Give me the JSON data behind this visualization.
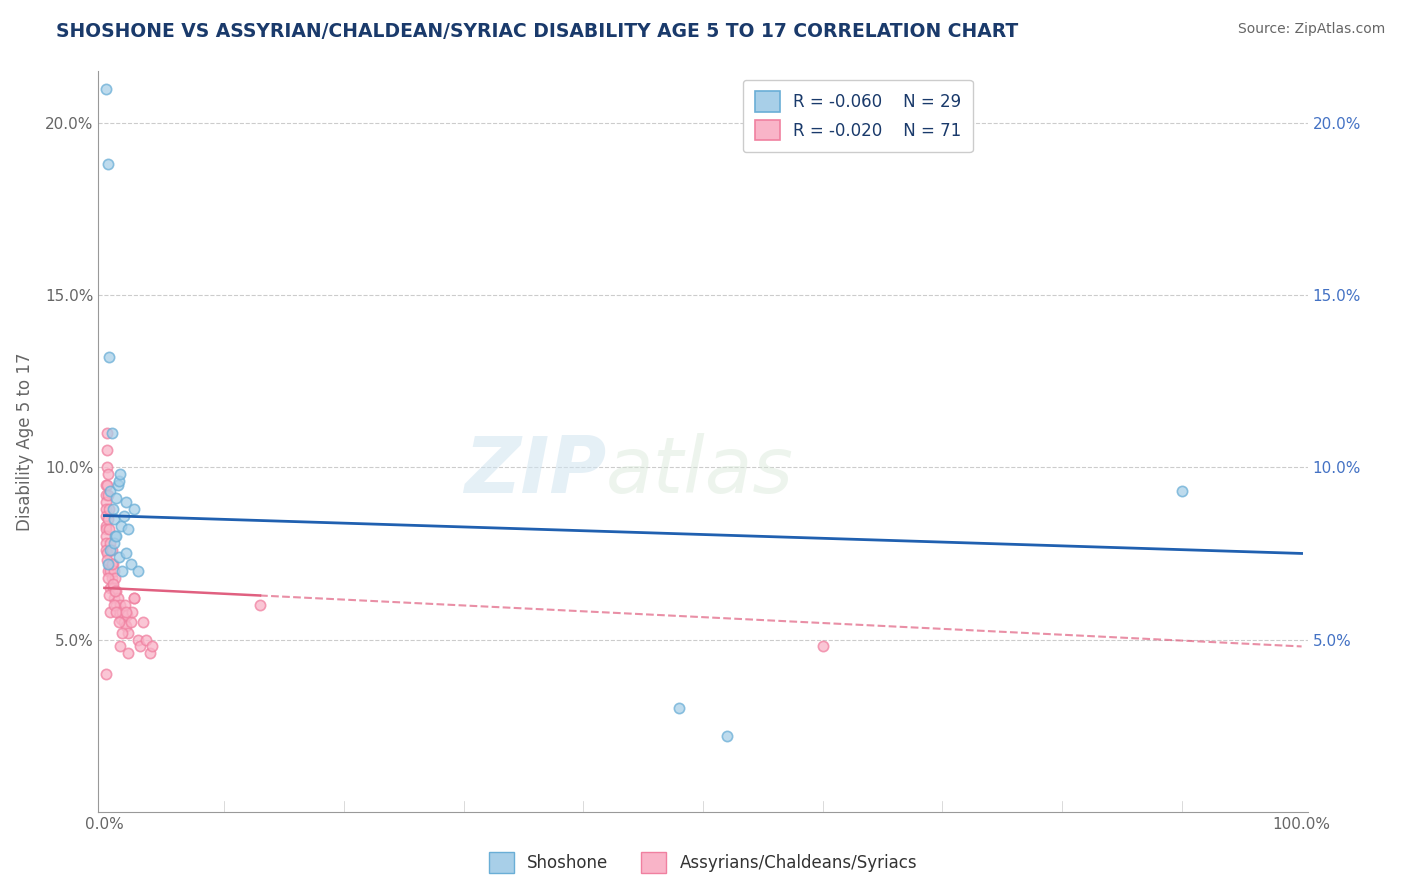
{
  "title": "SHOSHONE VS ASSYRIAN/CHALDEAN/SYRIAC DISABILITY AGE 5 TO 17 CORRELATION CHART",
  "source": "Source: ZipAtlas.com",
  "ylabel": "Disability Age 5 to 17",
  "xlim": [
    -0.005,
    1.005
  ],
  "ylim": [
    0.0,
    0.215
  ],
  "yticks": [
    0.05,
    0.1,
    0.15,
    0.2
  ],
  "ytick_labels": [
    "5.0%",
    "10.0%",
    "15.0%",
    "20.0%"
  ],
  "legend_blue_r": "R = -0.060",
  "legend_blue_n": "N = 29",
  "legend_pink_r": "R = -0.020",
  "legend_pink_n": "N = 71",
  "blue_fill_color": "#a8cfe8",
  "blue_edge_color": "#6aaed6",
  "pink_fill_color": "#f9b4c8",
  "pink_edge_color": "#f080a0",
  "blue_line_color": "#2060b0",
  "pink_line_color": "#e06080",
  "marker_size": 55,
  "blue_scatter_x": [
    0.001,
    0.003,
    0.004,
    0.005,
    0.006,
    0.007,
    0.008,
    0.009,
    0.01,
    0.011,
    0.012,
    0.013,
    0.014,
    0.016,
    0.018,
    0.02,
    0.025,
    0.003,
    0.005,
    0.008,
    0.01,
    0.012,
    0.015,
    0.018,
    0.022,
    0.028,
    0.48,
    0.52,
    0.9
  ],
  "blue_scatter_y": [
    0.21,
    0.188,
    0.132,
    0.093,
    0.11,
    0.088,
    0.085,
    0.08,
    0.091,
    0.095,
    0.096,
    0.098,
    0.083,
    0.086,
    0.09,
    0.082,
    0.088,
    0.072,
    0.076,
    0.078,
    0.08,
    0.074,
    0.07,
    0.075,
    0.072,
    0.07,
    0.03,
    0.022,
    0.093
  ],
  "pink_scatter_x": [
    0.001,
    0.001,
    0.001,
    0.001,
    0.001,
    0.001,
    0.001,
    0.001,
    0.001,
    0.001,
    0.002,
    0.002,
    0.002,
    0.002,
    0.002,
    0.003,
    0.003,
    0.003,
    0.003,
    0.004,
    0.004,
    0.004,
    0.005,
    0.005,
    0.005,
    0.006,
    0.006,
    0.007,
    0.007,
    0.008,
    0.008,
    0.009,
    0.01,
    0.01,
    0.011,
    0.012,
    0.013,
    0.014,
    0.015,
    0.016,
    0.017,
    0.018,
    0.019,
    0.02,
    0.022,
    0.023,
    0.025,
    0.028,
    0.03,
    0.032,
    0.035,
    0.038,
    0.04,
    0.002,
    0.003,
    0.004,
    0.005,
    0.006,
    0.007,
    0.008,
    0.009,
    0.01,
    0.012,
    0.013,
    0.015,
    0.018,
    0.02,
    0.025,
    0.13,
    0.6,
    0.001
  ],
  "pink_scatter_y": [
    0.095,
    0.092,
    0.09,
    0.088,
    0.086,
    0.083,
    0.082,
    0.08,
    0.078,
    0.076,
    0.11,
    0.105,
    0.1,
    0.095,
    0.075,
    0.098,
    0.092,
    0.085,
    0.07,
    0.088,
    0.082,
    0.072,
    0.078,
    0.07,
    0.065,
    0.076,
    0.068,
    0.072,
    0.065,
    0.07,
    0.062,
    0.068,
    0.064,
    0.06,
    0.062,
    0.058,
    0.06,
    0.056,
    0.058,
    0.055,
    0.06,
    0.054,
    0.057,
    0.052,
    0.055,
    0.058,
    0.062,
    0.05,
    0.048,
    0.055,
    0.05,
    0.046,
    0.048,
    0.073,
    0.068,
    0.063,
    0.058,
    0.072,
    0.066,
    0.06,
    0.064,
    0.058,
    0.055,
    0.048,
    0.052,
    0.058,
    0.046,
    0.062,
    0.06,
    0.048,
    0.04
  ],
  "blue_trend_y_start": 0.086,
  "blue_trend_y_end": 0.075,
  "pink_trend_x_solid_end": 0.13,
  "pink_trend_y_start": 0.065,
  "pink_trend_y_end": 0.048,
  "watermark_zip": "ZIP",
  "watermark_atlas": "atlas",
  "background_color": "#ffffff",
  "grid_color": "#cccccc",
  "title_color": "#1a3a6b",
  "axis_label_color": "#666666",
  "tick_color": "#666666",
  "source_color": "#666666",
  "right_tick_color": "#4472c4"
}
